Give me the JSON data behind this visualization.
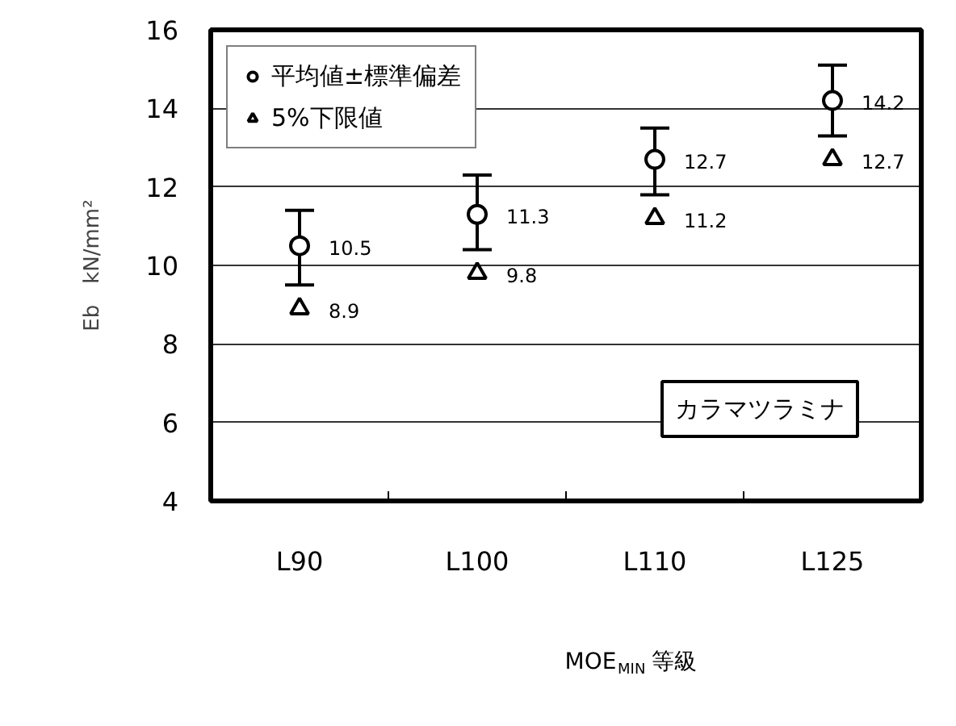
{
  "chart_data": {
    "type": "scatter",
    "xlabel": "MOE$_{MIN}$等級",
    "ylabel": "Eb　kN/mm²",
    "categories": [
      "L90",
      "L100",
      "L110",
      "L125"
    ],
    "series": [
      {
        "name": "平均値±標準偏差",
        "color": "#000000",
        "marker": "circle",
        "values": [
          10.5,
          11.3,
          12.7,
          14.2
        ],
        "errors": [
          [
            9.5,
            11.4
          ],
          [
            10.4,
            12.3
          ],
          [
            11.8,
            13.5
          ],
          [
            13.3,
            15.1
          ]
        ]
      },
      {
        "name": "5%下限値",
        "color": "#000000",
        "marker": "triangle",
        "values": [
          8.9,
          9.8,
          11.2,
          12.7
        ]
      }
    ],
    "ylim": [
      4,
      16
    ],
    "yticks": [
      4,
      6,
      8,
      10,
      12,
      14,
      16
    ],
    "grid": "y",
    "legend": "top left",
    "data_labels": true,
    "annotations": [
      "カラマツラミナ"
    ]
  }
}
